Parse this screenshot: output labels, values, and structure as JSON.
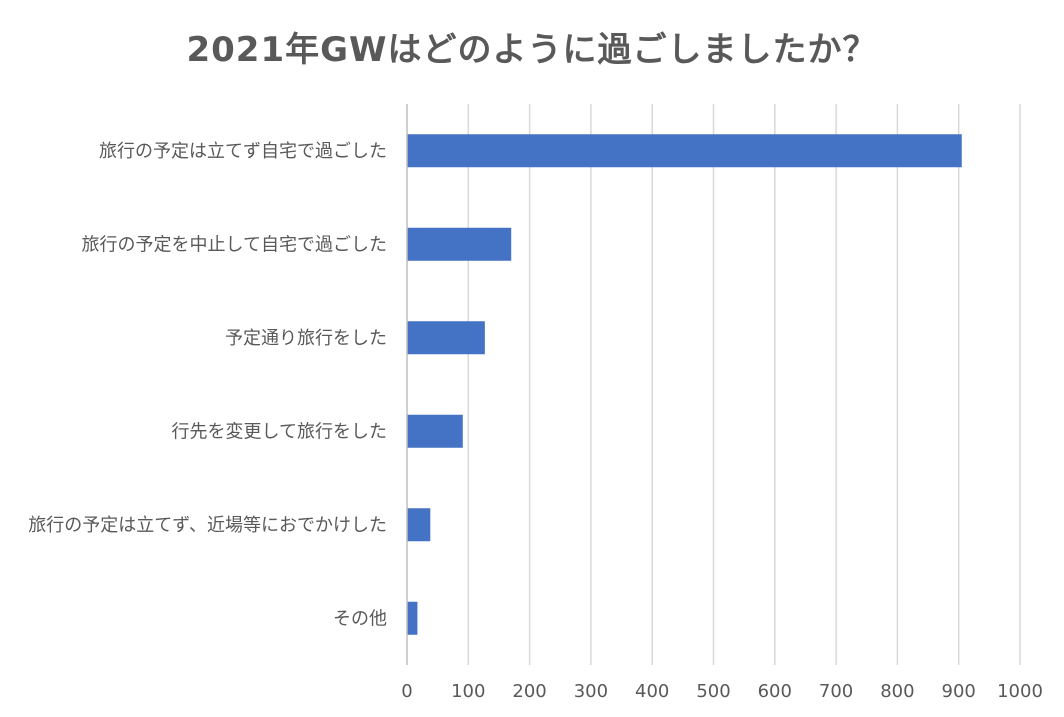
{
  "chart_data": {
    "type": "bar",
    "orientation": "horizontal",
    "title": "2021年GWはどのように過ごしましたか？",
    "xlabel": "",
    "ylabel": "",
    "categories": [
      "旅行の予定は立てず自宅で過ごした",
      "旅行の予定を中止して自宅で過ごした",
      "予定通り旅行をした",
      "行先を変更して旅行をした",
      "旅行の予定は立てず、近場等におでかけした",
      "その他"
    ],
    "values": [
      905,
      170,
      127,
      91,
      38,
      17
    ],
    "xlim": [
      0,
      1000
    ],
    "xticks": [
      0,
      100,
      200,
      300,
      400,
      500,
      600,
      700,
      800,
      900,
      1000
    ],
    "grid": "vertical",
    "legend": "none",
    "bar_color": "#4472c4"
  }
}
